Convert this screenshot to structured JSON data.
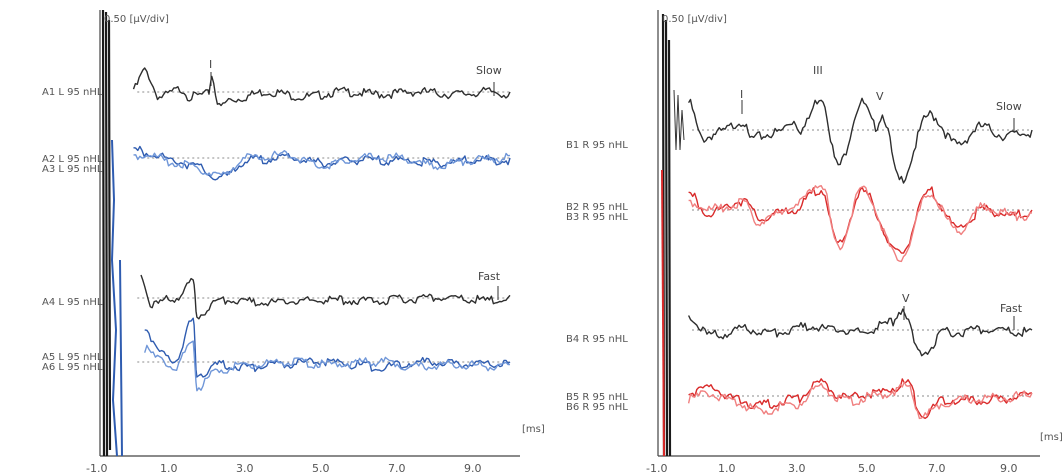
{
  "chart_data": [
    {
      "type": "line",
      "panel": "left",
      "scale_label": "0.50 [µV/div]",
      "x_unit": "[ms]",
      "xlim": [
        -1.0,
        10.0
      ],
      "x_ticks": [
        "-1.0",
        "1.0",
        "3.0",
        "5.0",
        "7.0",
        "9.0"
      ],
      "colors": {
        "slow": "#2e2e2e",
        "fast": "#2e2e2e",
        "repeat_a": "#2f5cb0",
        "repeat_b": "#6f96d8"
      },
      "labels": {
        "a1": "A1 L 95 nHL",
        "a2": "A2 L 95 nHL",
        "a3": "A3 L 95 nHL",
        "a4": "A4 L 95 nHL",
        "a5": "A5 L 95 nHL",
        "a6": "A6 L 95 nHL"
      },
      "rate_labels": {
        "slow": "Slow",
        "fast": "Fast"
      },
      "peak_labels": {
        "i_slow": "I"
      },
      "series": [
        {
          "name": "A1 L 95 nHL",
          "values": [
            [
              -0.1,
              0.1
            ],
            [
              0.2,
              0.45
            ],
            [
              0.6,
              -0.05
            ],
            [
              1.2,
              0.1
            ],
            [
              1.4,
              -0.05
            ],
            [
              1.9,
              0.0
            ],
            [
              2.0,
              0.35
            ],
            [
              2.2,
              -0.25
            ],
            [
              2.5,
              -0.1
            ],
            [
              3.5,
              0.05
            ],
            [
              4.5,
              -0.05
            ],
            [
              5.5,
              0.05
            ],
            [
              6.5,
              0.0
            ],
            [
              7.5,
              0.05
            ],
            [
              8.5,
              0.0
            ],
            [
              9.5,
              0.05
            ],
            [
              10.0,
              0.0
            ]
          ]
        },
        {
          "name": "A2 L 95 nHL",
          "values": [
            [
              -0.1,
              0.2
            ],
            [
              0.3,
              0.15
            ],
            [
              1.0,
              0.0
            ],
            [
              1.5,
              -0.1
            ],
            [
              2.2,
              -0.35
            ],
            [
              3.0,
              0.0
            ],
            [
              4.0,
              0.05
            ],
            [
              5.0,
              -0.05
            ],
            [
              6.0,
              0.0
            ],
            [
              7.0,
              0.0
            ],
            [
              8.0,
              -0.05
            ],
            [
              9.0,
              0.0
            ],
            [
              10.0,
              0.0
            ]
          ]
        },
        {
          "name": "A3 L 95 nHL",
          "values": [
            [
              -0.1,
              0.1
            ],
            [
              0.3,
              0.1
            ],
            [
              1.0,
              -0.05
            ],
            [
              1.6,
              -0.15
            ],
            [
              2.2,
              -0.3
            ],
            [
              3.0,
              0.05
            ],
            [
              4.0,
              0.1
            ],
            [
              5.0,
              -0.1
            ],
            [
              6.0,
              0.05
            ],
            [
              7.0,
              0.05
            ],
            [
              8.0,
              -0.1
            ],
            [
              9.0,
              0.0
            ],
            [
              10.0,
              0.05
            ]
          ]
        },
        {
          "name": "A4 L 95 nHL",
          "values": [
            [
              0.1,
              0.5
            ],
            [
              0.4,
              -0.1
            ],
            [
              1.0,
              0.05
            ],
            [
              1.5,
              0.35
            ],
            [
              1.6,
              -0.3
            ],
            [
              2.2,
              0.0
            ],
            [
              3.5,
              -0.05
            ],
            [
              5.0,
              0.0
            ],
            [
              6.5,
              0.0
            ],
            [
              8.0,
              0.05
            ],
            [
              9.5,
              0.0
            ],
            [
              10.0,
              0.05
            ]
          ]
        },
        {
          "name": "A5 L 95 nHL",
          "values": [
            [
              0.2,
              0.7
            ],
            [
              0.6,
              0.25
            ],
            [
              1.0,
              0.05
            ],
            [
              1.5,
              0.85
            ],
            [
              1.6,
              -0.2
            ],
            [
              2.2,
              0.0
            ],
            [
              3.0,
              -0.05
            ],
            [
              4.0,
              0.0
            ],
            [
              5.0,
              0.05
            ],
            [
              6.5,
              -0.05
            ],
            [
              7.5,
              0.05
            ],
            [
              8.5,
              0.0
            ],
            [
              10.0,
              0.0
            ]
          ]
        },
        {
          "name": "A6 L 95 nHL",
          "values": [
            [
              0.2,
              0.3
            ],
            [
              0.6,
              0.1
            ],
            [
              1.0,
              -0.05
            ],
            [
              1.5,
              0.4
            ],
            [
              1.6,
              -0.45
            ],
            [
              2.2,
              -0.1
            ],
            [
              3.0,
              0.0
            ],
            [
              4.0,
              0.05
            ],
            [
              5.0,
              0.0
            ],
            [
              6.5,
              0.05
            ],
            [
              7.5,
              -0.05
            ],
            [
              8.5,
              0.0
            ],
            [
              10.0,
              -0.05
            ]
          ]
        }
      ]
    },
    {
      "type": "line",
      "panel": "right",
      "scale_label": "0.50 [µV/div]",
      "x_unit": "[ms]",
      "xlim": [
        -1.0,
        10.0
      ],
      "x_ticks": [
        "-1.0",
        "1.0",
        "3.0",
        "5.0",
        "7.0",
        "9.0"
      ],
      "colors": {
        "slow": "#2e2e2e",
        "fast": "#2e2e2e",
        "repeat_a": "#d92a2a",
        "repeat_b": "#f08080"
      },
      "labels": {
        "b1": "B1 R 95 nHL",
        "b2": "B2 R 95 nHL",
        "b3": "B3 R 95 nHL",
        "b4": "B4 R 95 nHL",
        "b5": "B5 R 95 nHL",
        "b6": "B6 R 95 nHL"
      },
      "rate_labels": {
        "slow": "Slow",
        "fast": "Fast"
      },
      "peak_labels": {
        "i_slow": "I",
        "iii_slow": "III",
        "v_slow": "V",
        "v_fast": "V"
      },
      "series": [
        {
          "name": "B1 R 95 nHL",
          "values": [
            [
              -0.1,
              0.5
            ],
            [
              0.3,
              -0.1
            ],
            [
              0.8,
              0.0
            ],
            [
              1.5,
              0.2
            ],
            [
              1.7,
              -0.1
            ],
            [
              2.5,
              0.0
            ],
            [
              3.0,
              0.2
            ],
            [
              3.2,
              0.05
            ],
            [
              3.8,
              0.6
            ],
            [
              4.3,
              -0.55
            ],
            [
              5.0,
              0.5
            ],
            [
              5.4,
              0.1
            ],
            [
              5.6,
              0.3
            ],
            [
              6.1,
              -0.8
            ],
            [
              7.0,
              0.3
            ],
            [
              7.8,
              -0.2
            ],
            [
              8.5,
              0.1
            ],
            [
              9.2,
              -0.05
            ],
            [
              10.0,
              0.0
            ]
          ]
        },
        {
          "name": "B2 R 95 nHL",
          "values": [
            [
              -0.1,
              0.3
            ],
            [
              0.5,
              0.0
            ],
            [
              1.5,
              0.2
            ],
            [
              2.0,
              -0.1
            ],
            [
              3.0,
              0.05
            ],
            [
              3.8,
              0.4
            ],
            [
              4.3,
              -0.55
            ],
            [
              5.0,
              0.35
            ],
            [
              6.1,
              -0.7
            ],
            [
              7.0,
              0.35
            ],
            [
              7.8,
              -0.25
            ],
            [
              8.6,
              0.05
            ],
            [
              9.5,
              -0.05
            ],
            [
              10.0,
              0.0
            ]
          ]
        },
        {
          "name": "B3 R 95 nHL",
          "values": [
            [
              -0.1,
              0.2
            ],
            [
              0.5,
              0.05
            ],
            [
              1.5,
              0.15
            ],
            [
              2.0,
              -0.15
            ],
            [
              3.0,
              0.1
            ],
            [
              3.8,
              0.5
            ],
            [
              4.3,
              -0.6
            ],
            [
              5.0,
              0.4
            ],
            [
              6.1,
              -0.75
            ],
            [
              7.0,
              0.3
            ],
            [
              7.8,
              -0.3
            ],
            [
              8.6,
              0.1
            ],
            [
              9.5,
              -0.05
            ],
            [
              10.0,
              -0.05
            ]
          ]
        },
        {
          "name": "B4 R 95 nHL",
          "values": [
            [
              -0.1,
              0.3
            ],
            [
              0.5,
              -0.05
            ],
            [
              1.5,
              0.05
            ],
            [
              2.5,
              0.0
            ],
            [
              3.5,
              0.1
            ],
            [
              4.0,
              0.05
            ],
            [
              5.0,
              0.0
            ],
            [
              5.8,
              0.15
            ],
            [
              6.2,
              0.4
            ],
            [
              6.7,
              -0.35
            ],
            [
              7.5,
              0.0
            ],
            [
              8.5,
              0.05
            ],
            [
              10.0,
              0.0
            ]
          ]
        },
        {
          "name": "B5 R 95 nHL",
          "values": [
            [
              -0.1,
              0.1
            ],
            [
              0.5,
              0.2
            ],
            [
              1.2,
              0.0
            ],
            [
              2.0,
              -0.1
            ],
            [
              3.0,
              0.0
            ],
            [
              3.8,
              0.25
            ],
            [
              4.5,
              0.0
            ],
            [
              5.5,
              0.1
            ],
            [
              6.3,
              0.25
            ],
            [
              6.8,
              -0.25
            ],
            [
              7.5,
              0.0
            ],
            [
              8.5,
              -0.05
            ],
            [
              10.0,
              0.05
            ]
          ]
        },
        {
          "name": "B6 R 95 nHL",
          "values": [
            [
              -0.1,
              0.0
            ],
            [
              0.5,
              0.1
            ],
            [
              1.2,
              -0.05
            ],
            [
              2.0,
              -0.2
            ],
            [
              3.0,
              -0.1
            ],
            [
              3.8,
              0.2
            ],
            [
              4.5,
              -0.05
            ],
            [
              5.5,
              0.05
            ],
            [
              6.3,
              0.2
            ],
            [
              6.8,
              -0.3
            ],
            [
              7.5,
              -0.05
            ],
            [
              8.5,
              0.0
            ],
            [
              10.0,
              0.05
            ]
          ]
        }
      ]
    }
  ]
}
